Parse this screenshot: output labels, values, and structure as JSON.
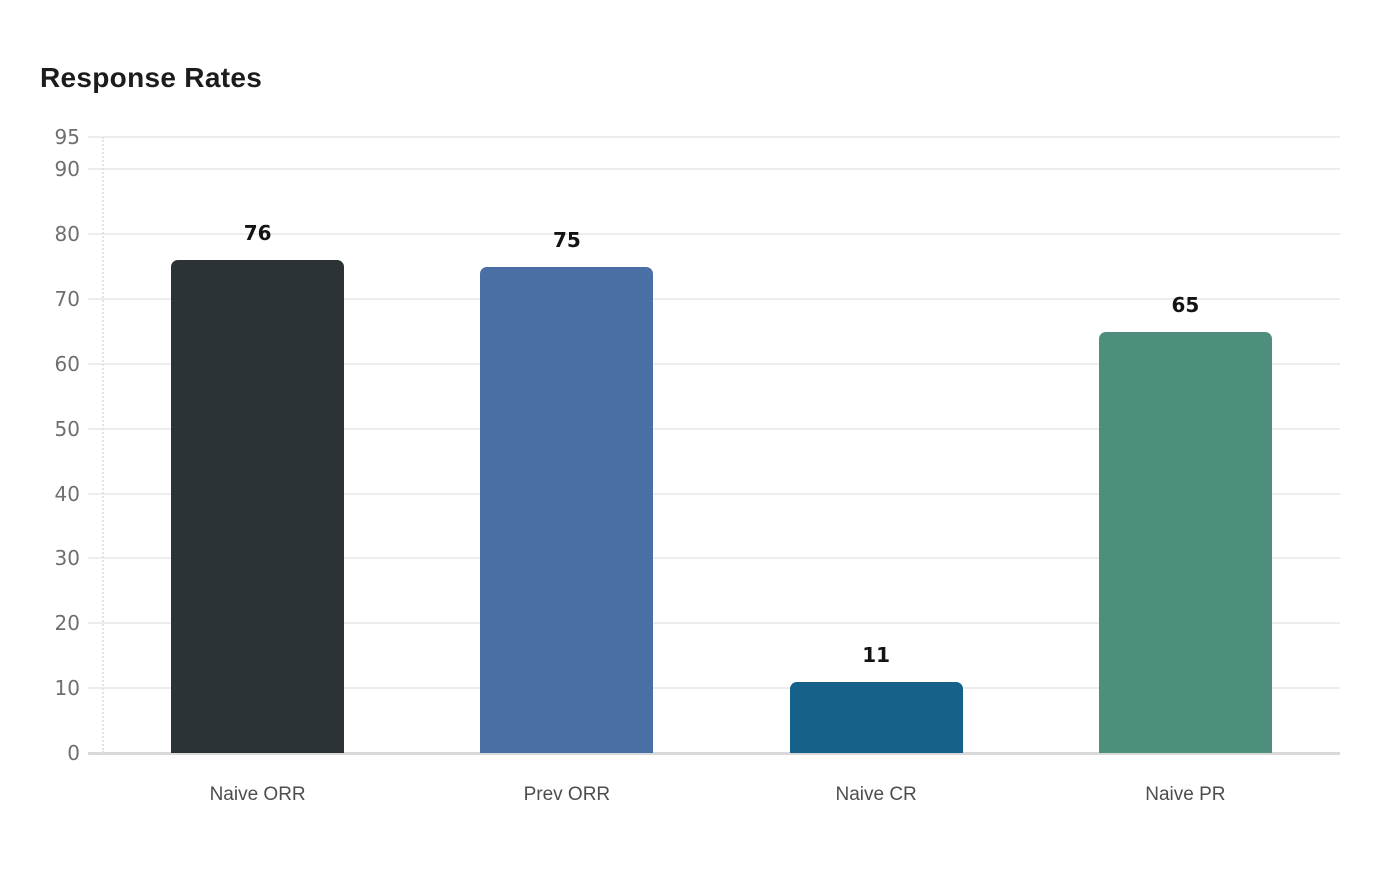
{
  "page": {
    "background_color": "#ffffff"
  },
  "chart_data": {
    "type": "bar",
    "title": "Response Rates",
    "categories": [
      "Naive ORR",
      "Prev ORR",
      "Naive CR",
      "Naive PR"
    ],
    "values": [
      76,
      75,
      11,
      65
    ],
    "value_labels": [
      "76",
      "75",
      "11",
      "65"
    ],
    "bar_colors": [
      "#2c3336",
      "#4a6fa5",
      "#15618a",
      "#4e8e7c"
    ],
    "xlabel": "",
    "ylabel": "",
    "ylim": [
      0,
      95
    ],
    "yticks": [
      0,
      10,
      20,
      30,
      40,
      50,
      60,
      70,
      80,
      90,
      95
    ],
    "grid": "horizontal",
    "legend": "none",
    "colors": {
      "title": "#1c1c1c",
      "value_label": "#141414",
      "y_tick_label": "#6f6f6f",
      "x_tick_label": "#4d4d4d",
      "gridline": "#ededed",
      "baseline": "#d9d9d9",
      "axis_dotted_line": "#e2e2e2"
    }
  }
}
